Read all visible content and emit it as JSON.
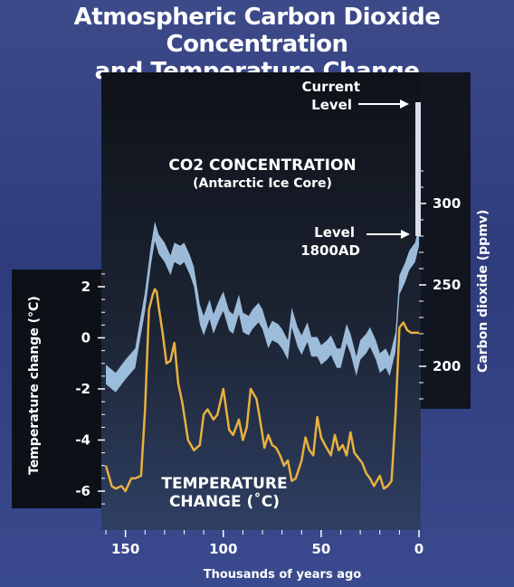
{
  "title_line1": "Atmospheric Carbon Dioxide Concentration",
  "title_line2": "and Temperature Change",
  "chart_data": {
    "type": "area",
    "xlabel": "Thousands of years ago",
    "ylabel_left": "Temperature change (°C)",
    "ylabel_right": "Carbon dioxide (ppmv)",
    "x_ticks": [
      150,
      100,
      50,
      0
    ],
    "y_left_ticks": [
      2,
      0,
      -2,
      -4,
      -6
    ],
    "y_right_ticks": [
      200,
      250,
      300
    ],
    "xlim": [
      160,
      0
    ],
    "ylim_left": [
      -7,
      3
    ],
    "ylim_right": [
      180,
      300
    ],
    "annotations": {
      "co2_title": "CO2  CONCENTRATION",
      "co2_sub": "(Antarctic Ice Core)",
      "temp_line1": "TEMPERATURE",
      "temp_line2": "CHANGE (˚C)",
      "current_level_1": "Current",
      "current_level_2": "Level",
      "level_1800_1": "Level",
      "level_1800_2": "1800AD"
    },
    "series": [
      {
        "name": "CO2 CONCENTRATION",
        "color": "#a7c9e8",
        "x": [
          160,
          155,
          150,
          145,
          140,
          137,
          135,
          133,
          130,
          127,
          125,
          122,
          120,
          117,
          115,
          112,
          110,
          107,
          105,
          102,
          100,
          97,
          95,
          92,
          90,
          87,
          85,
          82,
          80,
          77,
          75,
          72,
          70,
          67,
          65,
          62,
          60,
          57,
          55,
          52,
          50,
          47,
          45,
          42,
          40,
          37,
          35,
          32,
          30,
          27,
          25,
          22,
          20,
          17,
          15,
          12,
          10,
          7,
          5,
          2,
          0
        ],
        "values": [
          195,
          190,
          198,
          205,
          240,
          268,
          283,
          275,
          270,
          262,
          270,
          268,
          270,
          262,
          255,
          232,
          225,
          235,
          226,
          235,
          240,
          228,
          226,
          238,
          227,
          225,
          229,
          233,
          229,
          217,
          222,
          220,
          217,
          210,
          230,
          218,
          213,
          221,
          212,
          212,
          207,
          210,
          213,
          205,
          205,
          220,
          214,
          200,
          210,
          214,
          218,
          210,
          202,
          205,
          200,
          215,
          250,
          258,
          265,
          270,
          280
        ],
        "band_ppmv": 12
      },
      {
        "name": "TEMPERATURE CHANGE (˚C)",
        "color": "#e8b040",
        "x": [
          160,
          157,
          155,
          152,
          150,
          147,
          145,
          142,
          140,
          138,
          136,
          135,
          134,
          133,
          131,
          129,
          127,
          125,
          123,
          121,
          118,
          115,
          112,
          110,
          108,
          105,
          103,
          100,
          97,
          95,
          92,
          90,
          88,
          86,
          83,
          81,
          79,
          77,
          75,
          73,
          71,
          69,
          67,
          65,
          63,
          60,
          58,
          56,
          54,
          52,
          50,
          48,
          45,
          43,
          41,
          39,
          37,
          35,
          33,
          31,
          29,
          27,
          25,
          23,
          20,
          18,
          16,
          14,
          12,
          10,
          8,
          6,
          4,
          2,
          0
        ],
        "values": [
          -5.0,
          -5.8,
          -5.9,
          -5.8,
          -6.0,
          -5.5,
          -5.5,
          -5.4,
          -2.8,
          1.1,
          1.7,
          1.9,
          1.8,
          1.2,
          0.2,
          -1.0,
          -0.9,
          -0.2,
          -1.8,
          -2.5,
          -4.0,
          -4.4,
          -4.2,
          -3.0,
          -2.8,
          -3.2,
          -3.0,
          -2.0,
          -3.6,
          -3.8,
          -3.2,
          -4.0,
          -3.5,
          -2.0,
          -2.4,
          -3.3,
          -4.3,
          -3.8,
          -4.2,
          -4.3,
          -4.6,
          -5.0,
          -4.8,
          -5.6,
          -5.5,
          -4.8,
          -3.9,
          -4.4,
          -4.6,
          -3.1,
          -3.9,
          -4.2,
          -4.6,
          -3.8,
          -4.4,
          -4.2,
          -4.6,
          -3.7,
          -4.5,
          -4.7,
          -4.9,
          -5.3,
          -5.5,
          -5.8,
          -5.4,
          -5.9,
          -5.8,
          -5.6,
          -3.0,
          0.4,
          0.6,
          0.3,
          0.2,
          0.2,
          0.2
        ]
      }
    ]
  }
}
